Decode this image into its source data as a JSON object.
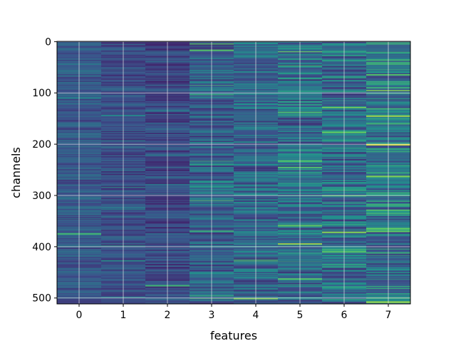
{
  "chart_data": {
    "type": "heatmap",
    "title": "",
    "xlabel": "features",
    "ylabel": "channels",
    "x_categories": [
      0,
      1,
      2,
      3,
      4,
      5,
      6,
      7
    ],
    "y_range": [
      0,
      511
    ],
    "y_ticks": [
      0,
      100,
      200,
      300,
      400,
      500
    ],
    "rows": 512,
    "colormap": "viridis",
    "grid": true,
    "colors": {
      "low": "#440154",
      "mid_low": "#3b518b",
      "mid": "#21918c",
      "mid_high": "#5ec962",
      "high": "#fde725",
      "grid": "#e6e6e6"
    },
    "column_profiles": [
      {
        "feature": 0,
        "mean": 0.28,
        "spread": 0.1
      },
      {
        "feature": 1,
        "mean": 0.24,
        "spread": 0.1
      },
      {
        "feature": 2,
        "mean": 0.22,
        "spread": 0.11
      },
      {
        "feature": 3,
        "mean": 0.3,
        "spread": 0.15
      },
      {
        "feature": 4,
        "mean": 0.33,
        "spread": 0.17
      },
      {
        "feature": 5,
        "mean": 0.36,
        "spread": 0.2
      },
      {
        "feature": 6,
        "mean": 0.36,
        "spread": 0.2
      },
      {
        "feature": 7,
        "mean": 0.4,
        "spread": 0.22
      }
    ],
    "highlight_cells": [
      {
        "feature": 7,
        "channel": 200,
        "value": 0.95
      },
      {
        "feature": 7,
        "channel": 145,
        "value": 0.9
      },
      {
        "feature": 7,
        "channel": 262,
        "value": 0.8
      },
      {
        "feature": 5,
        "channel": 20,
        "value": 0.85
      },
      {
        "feature": 5,
        "channel": 395,
        "value": 0.9
      },
      {
        "feature": 5,
        "channel": 464,
        "value": 0.7
      },
      {
        "feature": 5,
        "channel": 245,
        "value": 0.75
      },
      {
        "feature": 6,
        "channel": 128,
        "value": 0.8
      },
      {
        "feature": 6,
        "channel": 410,
        "value": 0.7
      },
      {
        "feature": 4,
        "channel": 500,
        "value": 0.8
      },
      {
        "feature": 3,
        "channel": 310,
        "value": 0.75
      },
      {
        "feature": 3,
        "channel": 5,
        "value": 0.7
      }
    ]
  }
}
